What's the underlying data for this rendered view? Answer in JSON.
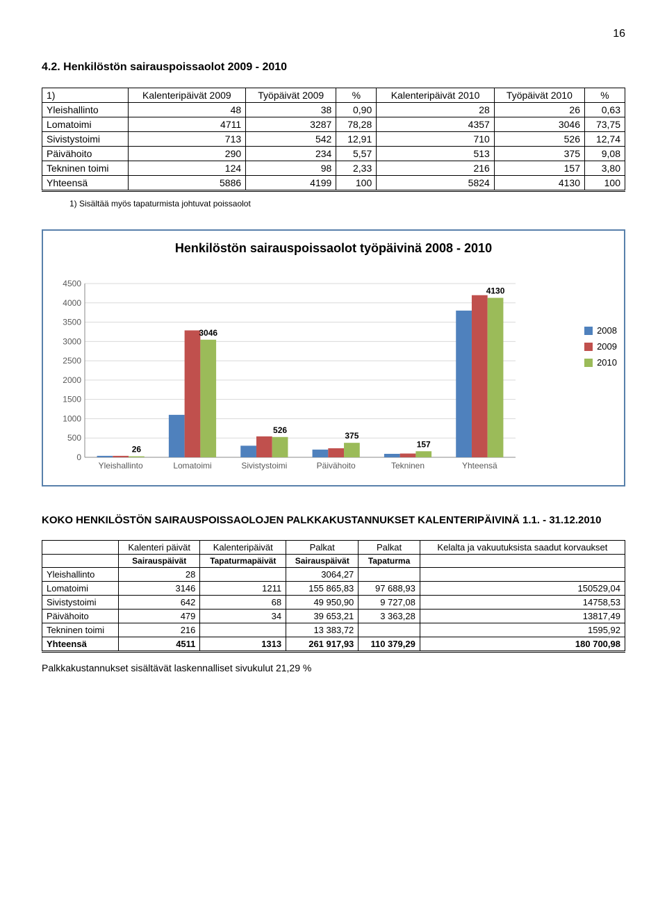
{
  "page_number": "16",
  "section": {
    "title": "4.2. Henkilöstön sairauspoissaolot 2009 - 2010"
  },
  "table1": {
    "columns": [
      "1)",
      "Kalenteripäivät 2009",
      "Työpäivät 2009",
      "%",
      "Kalenteripäivät 2010",
      "Työpäivät 2010",
      "%"
    ],
    "rows": [
      [
        "Yleishallinto",
        "48",
        "38",
        "0,90",
        "28",
        "26",
        "0,63"
      ],
      [
        "Lomatoimi",
        "4711",
        "3287",
        "78,28",
        "4357",
        "3046",
        "73,75"
      ],
      [
        "Sivistystoimi",
        "713",
        "542",
        "12,91",
        "710",
        "526",
        "12,74"
      ],
      [
        "Päivähoito",
        "290",
        "234",
        "5,57",
        "513",
        "375",
        "9,08"
      ],
      [
        "Tekninen toimi",
        "124",
        "98",
        "2,33",
        "216",
        "157",
        "3,80"
      ],
      [
        "Yhteensä",
        "5886",
        "4199",
        "100",
        "5824",
        "4130",
        "100"
      ]
    ]
  },
  "note1": "1)   Sisältää myös tapaturmista johtuvat poissaolot",
  "chart": {
    "title": "Henkilöstön sairauspoissaolot työpäivinä 2008 - 2010",
    "categories": [
      "Yleishallinto",
      "Lomatoimi",
      "Sivistystoimi",
      "Päivähoito",
      "Tekninen",
      "Yhteensä"
    ],
    "series": [
      {
        "name": "2008",
        "color": "#4f81bd",
        "values": [
          38,
          1100,
          300,
          200,
          90,
          3800
        ]
      },
      {
        "name": "2009",
        "color": "#c0504d",
        "values": [
          38,
          3287,
          542,
          234,
          98,
          4199
        ]
      },
      {
        "name": "2010",
        "color": "#9bbb59",
        "values": [
          26,
          3046,
          526,
          375,
          157,
          4130
        ]
      }
    ],
    "labels": [
      {
        "cat": 0,
        "series": 2,
        "text": "26"
      },
      {
        "cat": 1,
        "series": 2,
        "text": "3046"
      },
      {
        "cat": 2,
        "series": 2,
        "text": "526"
      },
      {
        "cat": 3,
        "series": 2,
        "text": "375"
      },
      {
        "cat": 4,
        "series": 2,
        "text": "157"
      },
      {
        "cat": 5,
        "series": 2,
        "text": "4130"
      }
    ],
    "ymax": 4500,
    "ytick": 500,
    "grid_color": "#d9d9d9",
    "axis_color": "#898989",
    "label_fontsize": 12
  },
  "section2": {
    "title": "KOKO HENKILÖSTÖN SAIRAUSPOISSAOLOJEN PALKKAKUSTANNUKSET KALENTERIPÄIVINÄ 1.1. - 31.12.2010"
  },
  "table2": {
    "columns": [
      "",
      "Kalenteri päivät",
      "Kalenteripäivät",
      "Palkat",
      "Palkat",
      "Kelalta ja vakuutuksista saadut korvaukset"
    ],
    "subheaders": [
      "",
      "Sairauspäivät",
      "Tapaturmapäivät",
      "Sairauspäivät",
      "Tapaturma",
      ""
    ],
    "rows": [
      [
        "Yleishallinto",
        "28",
        "",
        "3064,27",
        "",
        ""
      ],
      [
        "Lomatoimi",
        "3146",
        "1211",
        "155 865,83",
        "97 688,93",
        "150529,04"
      ],
      [
        "Sivistystoimi",
        "642",
        "68",
        "49 950,90",
        "9 727,08",
        "14758,53"
      ],
      [
        "Päivähoito",
        "479",
        "34",
        "39 653,21",
        "3 363,28",
        "13817,49"
      ],
      [
        "Tekninen toimi",
        "216",
        "",
        "13 383,72",
        "",
        "1595,92"
      ],
      [
        "Yhteensä",
        "4511",
        "1313",
        "261 917,93",
        "110 379,29",
        "180 700,98"
      ]
    ]
  },
  "footnote": "Palkkakustannukset sisältävät laskennalliset sivukulut 21,29 %"
}
